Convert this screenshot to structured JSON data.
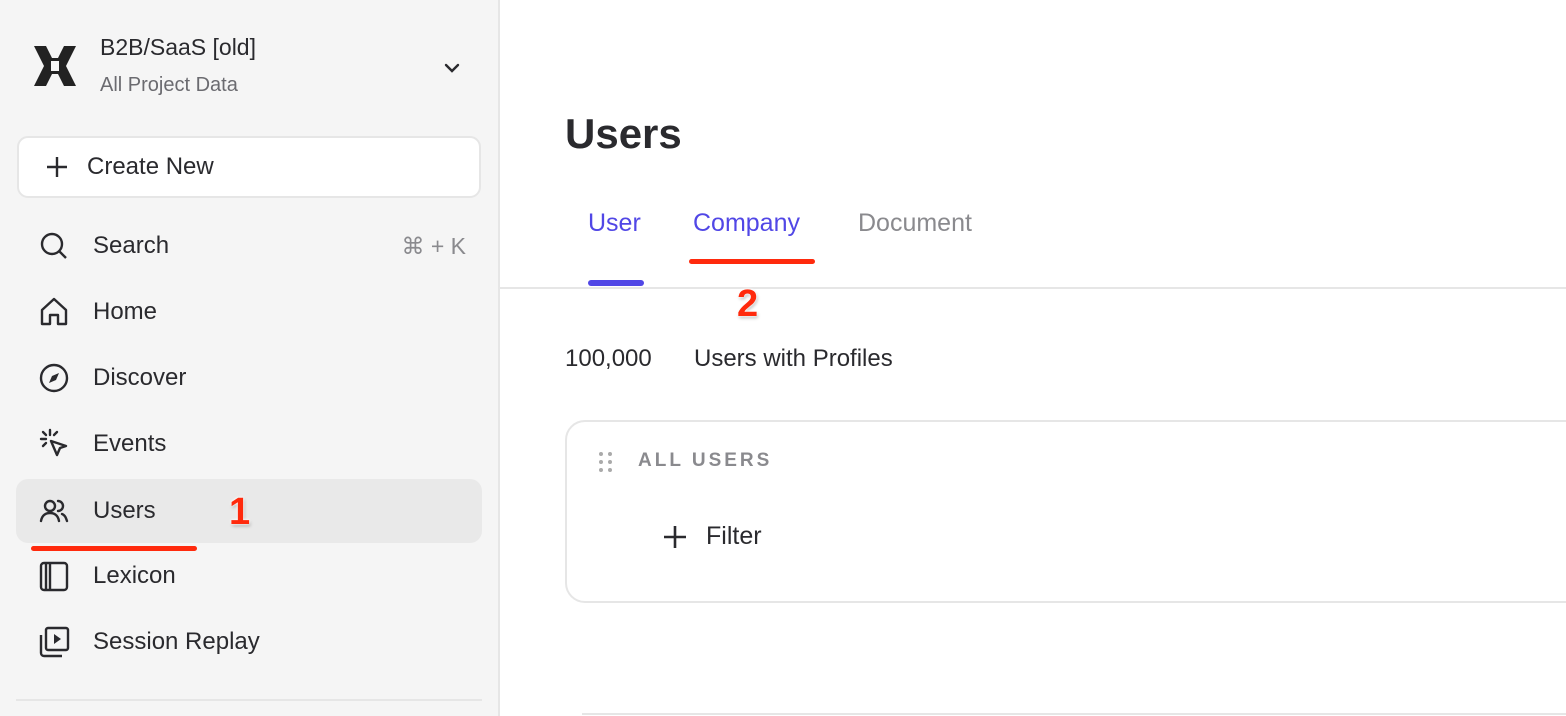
{
  "sidebar": {
    "project_title": "B2B/SaaS [old]",
    "project_subtitle": "All Project Data",
    "create_new_label": "Create New",
    "items": [
      {
        "label": "Search",
        "icon": "search-icon",
        "shortcut": "⌘ + K"
      },
      {
        "label": "Home",
        "icon": "home-icon"
      },
      {
        "label": "Discover",
        "icon": "compass-icon"
      },
      {
        "label": "Events",
        "icon": "cursor-click-icon"
      },
      {
        "label": "Users",
        "icon": "users-icon",
        "active": true
      },
      {
        "label": "Lexicon",
        "icon": "book-icon"
      },
      {
        "label": "Session Replay",
        "icon": "play-stack-icon"
      }
    ]
  },
  "main": {
    "title": "Users",
    "tabs": [
      {
        "label": "User",
        "active": true
      },
      {
        "label": "Company"
      },
      {
        "label": "Document"
      }
    ],
    "count": "100,000",
    "count_label": "Users with Profiles",
    "card": {
      "title": "ALL USERS",
      "filter_label": "Filter"
    }
  },
  "annotations": {
    "step1": "1",
    "step2": "2"
  },
  "colors": {
    "accent": "#5147e6",
    "annotation": "#ff2a0d",
    "sidebar_bg": "#f5f5f5"
  }
}
